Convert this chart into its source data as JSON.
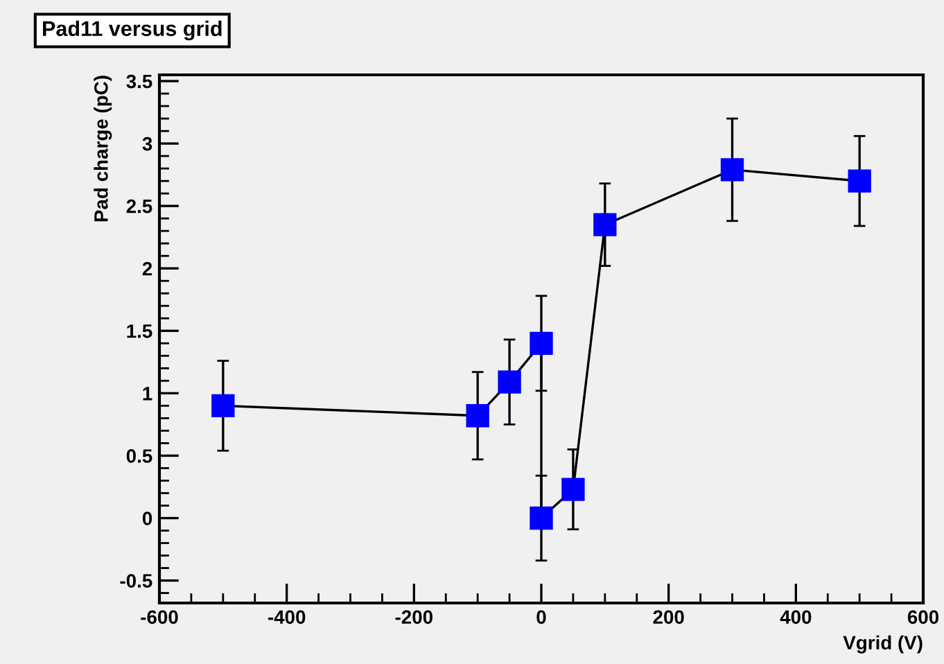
{
  "chart_data": {
    "type": "line",
    "title": "Pad11 versus grid",
    "xlabel": "Vgrid (V)",
    "ylabel": "Pad charge (pC)",
    "x": [
      -500,
      -100,
      -50,
      0,
      0,
      50,
      100,
      300,
      500
    ],
    "series": [
      {
        "color": "#0000ff",
        "values": [
          0.9,
          0.82,
          1.09,
          1.4,
          0.0,
          0.23,
          2.35,
          2.79,
          2.7
        ],
        "errors": [
          0.36,
          0.35,
          0.34,
          0.38,
          0.34,
          0.32,
          0.33,
          0.41,
          0.36
        ]
      }
    ],
    "marker": "square",
    "line_style": "solid",
    "grid": false,
    "legend": false,
    "xlim": [
      -600,
      600
    ],
    "xticks": [
      -600,
      -400,
      -200,
      0,
      200,
      400,
      600
    ],
    "ylim": [
      -0.68,
      3.55
    ],
    "yticks": [
      -0.5,
      0,
      0.5,
      1,
      1.5,
      2,
      2.5,
      3,
      3.5
    ]
  }
}
